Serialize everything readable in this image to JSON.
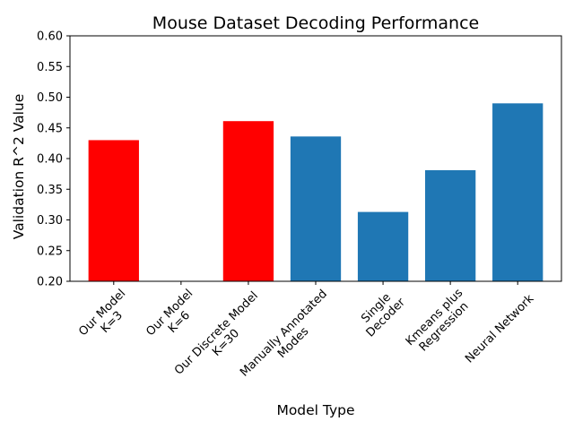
{
  "chart_data": {
    "type": "bar",
    "title": "Mouse Dataset Decoding Performance",
    "xlabel": "Model Type",
    "ylabel": "Validation R^2 Value",
    "ylim": [
      0.2,
      0.6
    ],
    "yticks": [
      "0.20",
      "0.25",
      "0.30",
      "0.35",
      "0.40",
      "0.45",
      "0.50",
      "0.55",
      "0.60"
    ],
    "grid": false,
    "legend": "none",
    "categories": [
      "Our Model\nK=3",
      "Our Model\nK=6",
      "Our Discrete Model\nK=30",
      "Manually Annotated\nModes",
      "Single\nDecoder",
      "Kmeans plus\nRegression",
      "Neural Network"
    ],
    "values": [
      0.43,
      null,
      0.461,
      0.436,
      0.313,
      0.381,
      0.49
    ],
    "bar_colors": [
      "#ff0000",
      "#ff0000",
      "#ff0000",
      "#1f77b4",
      "#1f77b4",
      "#1f77b4",
      "#1f77b4"
    ]
  }
}
